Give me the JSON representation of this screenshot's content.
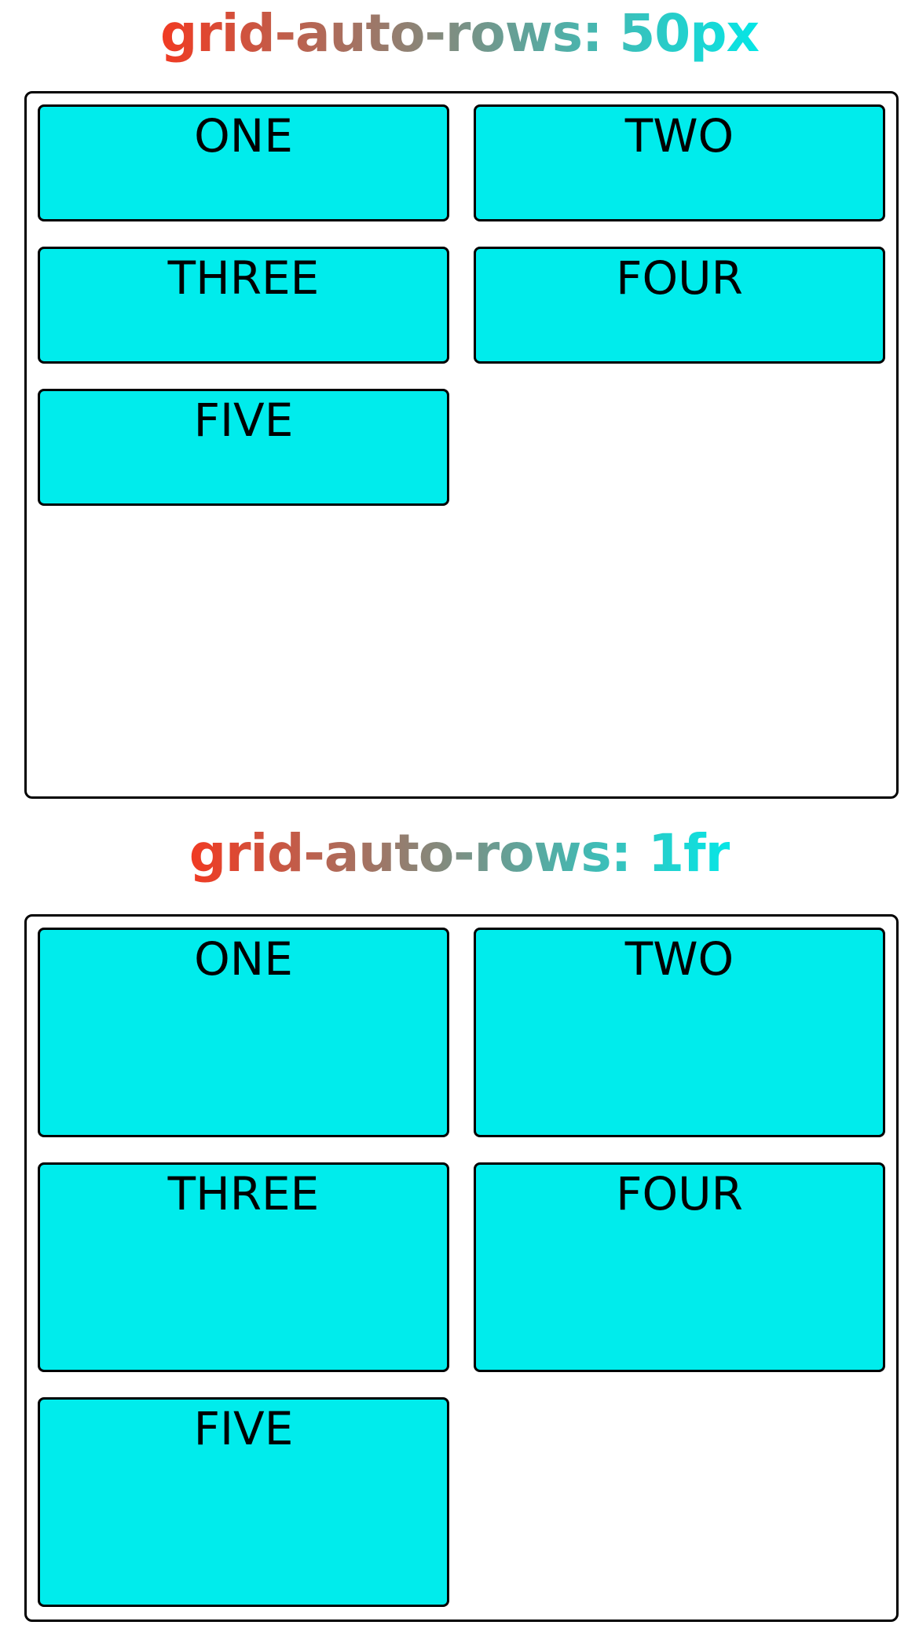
{
  "colors": {
    "gradient_start": "#f13a22",
    "gradient_end": "#05e6e6",
    "cell_fill": "#00ecec",
    "border": "#000000"
  },
  "sections": [
    {
      "title": "grid-auto-rows: 50px",
      "items": [
        "ONE",
        "TWO",
        "THREE",
        "FOUR",
        "FIVE"
      ]
    },
    {
      "title": "grid-auto-rows: 1fr",
      "items": [
        "ONE",
        "TWO",
        "THREE",
        "FOUR",
        "FIVE"
      ]
    }
  ]
}
